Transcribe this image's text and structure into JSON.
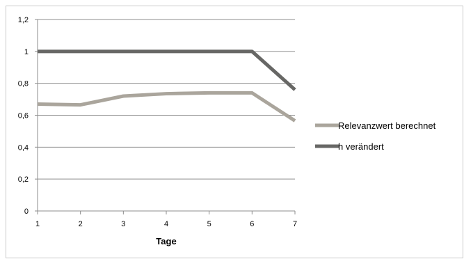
{
  "chart_data": {
    "type": "line",
    "title": "",
    "xlabel": "Tage",
    "ylabel": "",
    "x": [
      1,
      2,
      3,
      4,
      5,
      6,
      7
    ],
    "x_tick_labels": [
      "1",
      "2",
      "3",
      "4",
      "5",
      "6",
      "7"
    ],
    "ylim": [
      0,
      1.2
    ],
    "y_tick_labels": [
      "0",
      "0,2",
      "0,4",
      "0,6",
      "0,8",
      "1",
      "1,2"
    ],
    "y_ticks": [
      0,
      0.2,
      0.4,
      0.6,
      0.8,
      1.0,
      1.2
    ],
    "grid": "horizontal",
    "legend_position": "right",
    "series": [
      {
        "name": "Relevanzwert berechnet",
        "color": "#aaa59c",
        "values": [
          0.67,
          0.665,
          0.72,
          0.735,
          0.74,
          0.74,
          0.565
        ]
      },
      {
        "name": "h verändert",
        "color": "#676765",
        "values": [
          1.0,
          1.0,
          1.0,
          1.0,
          1.0,
          1.0,
          0.76
        ]
      }
    ]
  }
}
